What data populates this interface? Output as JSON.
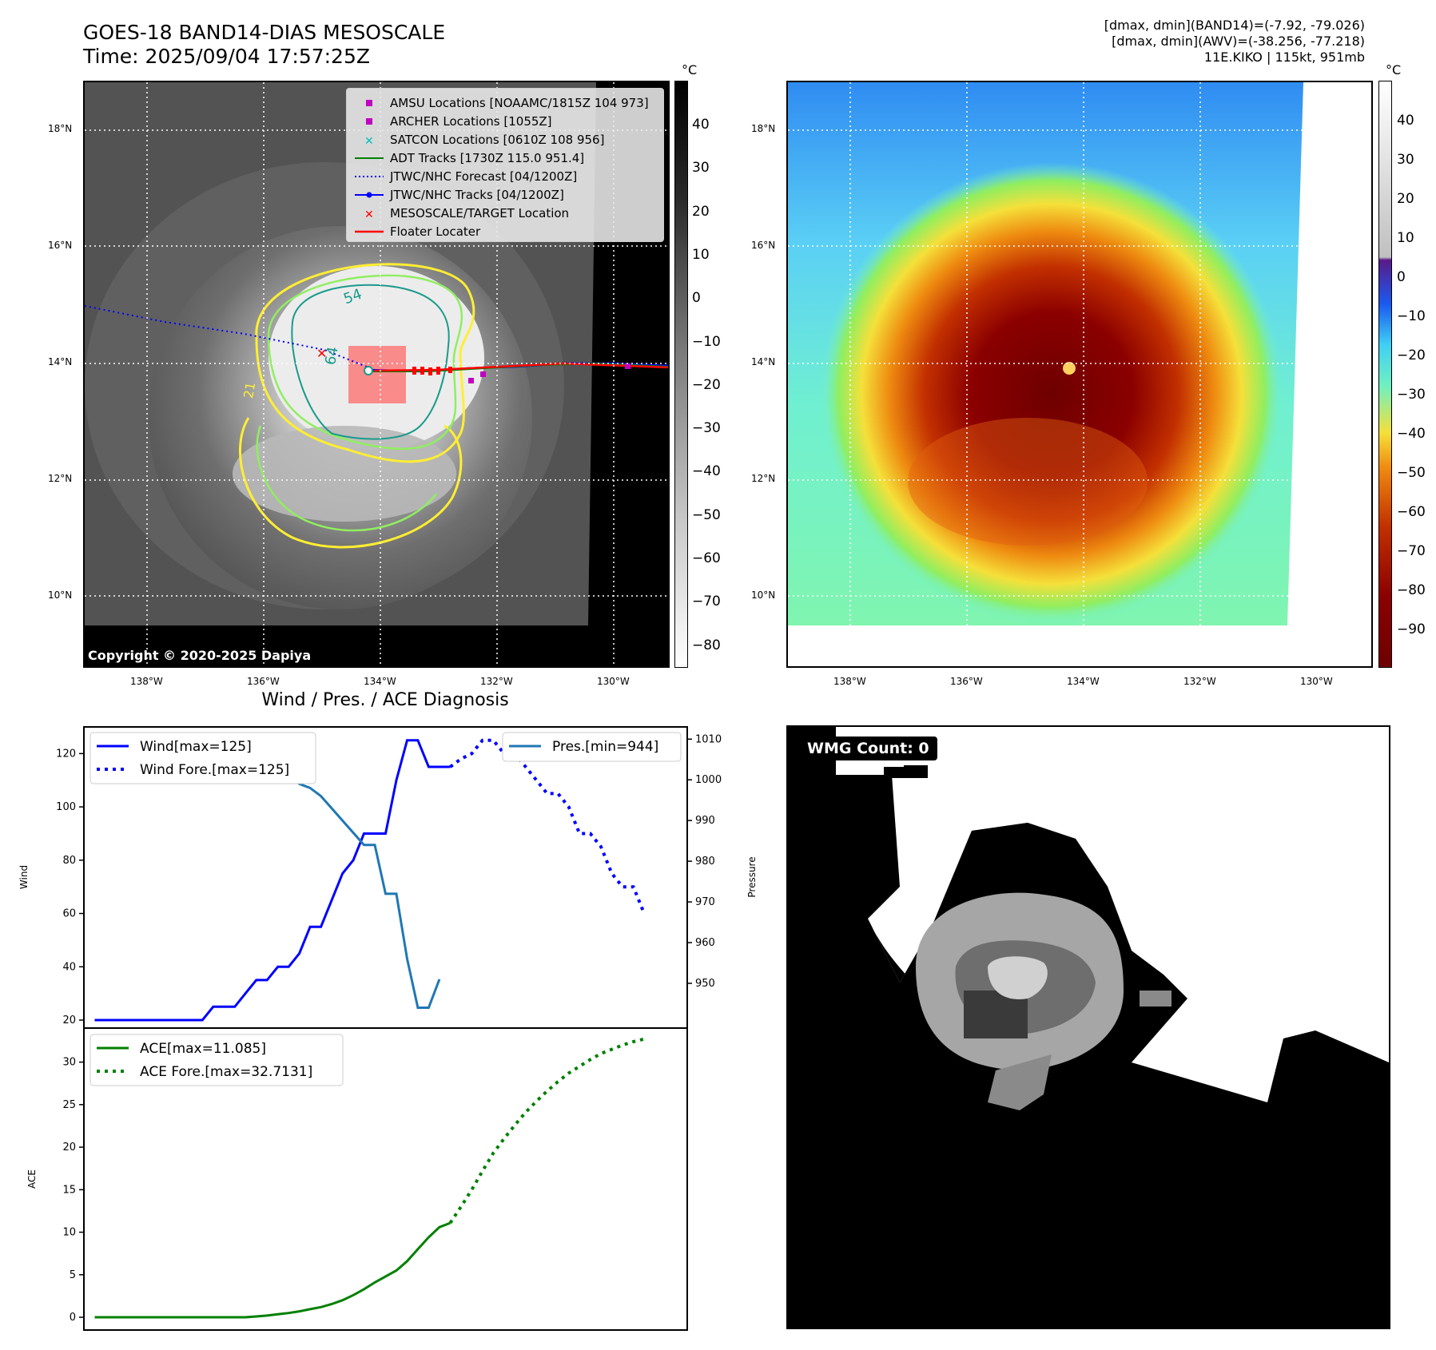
{
  "header": {
    "title_line1": "GOES-18 BAND14-DIAS MESOSCALE",
    "title_line2": "Time: 2025/09/04 17:57:25Z",
    "info_line1": "[dmax, dmin](BAND14)=(-7.92, -79.026)",
    "info_line2": "[dmax, dmin](AWV)=(-38.256, -77.218)",
    "info_line3": "11E.KIKO | 115kt, 951mb"
  },
  "maps": {
    "lat_labels": [
      "18°N",
      "16°N",
      "14°N",
      "12°N",
      "10°N"
    ],
    "lon_labels": [
      "138°W",
      "136°W",
      "134°W",
      "132°W",
      "130°W"
    ],
    "copyright": "Copyright © 2020-2025 Dapiya",
    "contour_labels": [
      "54",
      "64",
      "21"
    ],
    "colorbar_unit": "°C",
    "gray_colorbar_ticks": [
      "40",
      "30",
      "20",
      "10",
      "0",
      "−10",
      "−20",
      "−30",
      "−40",
      "−50",
      "−60",
      "−70",
      "−80"
    ],
    "color_colorbar_ticks": [
      "40",
      "30",
      "20",
      "10",
      "0",
      "−10",
      "−20",
      "−30",
      "−40",
      "−50",
      "−60",
      "−70",
      "−80",
      "−90"
    ]
  },
  "legend_map": {
    "items": [
      {
        "label": "AMSU Locations [NOAAMC/1815Z 104 973]",
        "color": "#c000c0",
        "symbol": "square"
      },
      {
        "label": "ARCHER Locations [1055Z]",
        "color": "#c000c0",
        "symbol": "square"
      },
      {
        "label": "SATCON Locations [0610Z 108 956]",
        "color": "#00bfbf",
        "symbol": "cross"
      },
      {
        "label": "ADT Tracks [1730Z 115.0 951.4]",
        "color": "#008000",
        "symbol": "line"
      },
      {
        "label": "JTWC/NHC Forecast [04/1200Z]",
        "color": "#0000ff",
        "symbol": "dotted"
      },
      {
        "label": "JTWC/NHC Tracks [04/1200Z]",
        "color": "#0000ff",
        "symbol": "line-dot"
      },
      {
        "label": "MESOSCALE/TARGET Location",
        "color": "#ff0000",
        "symbol": "x"
      },
      {
        "label": "Floater Locater",
        "color": "#ff0000",
        "symbol": "line"
      }
    ]
  },
  "wmg": {
    "badge": "WMG Count: 0"
  },
  "colors": {
    "wind": "#0000ff",
    "pressure": "#1f77b4",
    "ace": "#008000",
    "contour_yellow": "#ffee33",
    "contour_green": "#90ee60",
    "contour_teal": "#1a9a8a"
  },
  "chart_data": [
    {
      "type": "line",
      "title": "Wind / Pres. / ACE Diagnosis",
      "ylabel": "Wind",
      "ylabel_right": "Pressure",
      "ylim": [
        17,
        130
      ],
      "ylim_right": [
        939,
        1013
      ],
      "yticks": [
        20,
        40,
        60,
        80,
        100,
        120
      ],
      "yticks_right": [
        950,
        960,
        970,
        980,
        990,
        1000,
        1010
      ],
      "xlim": [
        -1,
        55
      ],
      "series": [
        {
          "name": "Wind",
          "legend": "Wind[max=125]",
          "axis": "left",
          "style": "solid",
          "x": [
            0,
            1,
            2,
            3,
            4,
            5,
            6,
            7,
            8,
            9,
            10,
            11,
            12,
            13,
            14,
            15,
            16,
            17,
            18,
            19,
            20,
            21,
            22,
            23,
            24,
            25,
            26,
            27,
            28,
            29,
            30,
            31,
            32,
            33
          ],
          "values": [
            20,
            20,
            20,
            20,
            20,
            20,
            20,
            20,
            20,
            20,
            20,
            25,
            25,
            25,
            30,
            35,
            35,
            40,
            40,
            45,
            55,
            55,
            65,
            75,
            80,
            90,
            90,
            90,
            110,
            125,
            125,
            115,
            115,
            115
          ]
        },
        {
          "name": "Wind Fore.",
          "legend": "Wind Fore.[max=125]",
          "axis": "left",
          "style": "dotted",
          "x": [
            33,
            34,
            35,
            36,
            37,
            38,
            39,
            40,
            41,
            42,
            43,
            44,
            45,
            46,
            47,
            48,
            49,
            50,
            51
          ],
          "values": [
            115,
            118,
            120,
            125,
            125,
            120,
            120,
            115,
            110,
            105,
            105,
            100,
            90,
            90,
            85,
            75,
            70,
            70,
            60
          ]
        },
        {
          "name": "Pres.",
          "legend": "Pres.[min=944]",
          "axis": "right",
          "style": "solid",
          "x": [
            0,
            1,
            2,
            3,
            4,
            5,
            6,
            7,
            8,
            9,
            10,
            11,
            12,
            13,
            14,
            15,
            16,
            17,
            18,
            19,
            20,
            21,
            22,
            23,
            24,
            25,
            26,
            27,
            28,
            29,
            30,
            31,
            32
          ],
          "values": [
            1010,
            1010,
            1010,
            1010,
            1010,
            1010,
            1010,
            1010,
            1010,
            1010,
            1010,
            1009,
            1009,
            1008,
            1007,
            1006,
            1004,
            1003,
            1001,
            999,
            998,
            996,
            993,
            990,
            987,
            984,
            984,
            972,
            972,
            956,
            944,
            944,
            951
          ]
        }
      ]
    },
    {
      "type": "line",
      "ylabel": "ACE",
      "ylim": [
        -1.5,
        34
      ],
      "yticks": [
        0,
        5,
        10,
        15,
        20,
        25,
        30
      ],
      "xlim": [
        -1,
        55
      ],
      "series": [
        {
          "name": "ACE",
          "legend": "ACE[max=11.085]",
          "style": "solid",
          "x": [
            0,
            2,
            4,
            6,
            8,
            10,
            12,
            14,
            15,
            16,
            17,
            18,
            19,
            20,
            21,
            22,
            23,
            24,
            25,
            26,
            27,
            28,
            29,
            30,
            31,
            32,
            33
          ],
          "values": [
            0,
            0,
            0,
            0,
            0,
            0,
            0,
            0,
            0.1,
            0.2,
            0.35,
            0.5,
            0.7,
            0.95,
            1.2,
            1.55,
            2.0,
            2.6,
            3.3,
            4.1,
            4.8,
            5.5,
            6.6,
            8.0,
            9.4,
            10.6,
            11.085
          ]
        },
        {
          "name": "ACE Fore.",
          "legend": "ACE Fore.[max=32.7131]",
          "style": "dotted",
          "x": [
            33,
            34,
            35,
            36,
            37,
            38,
            39,
            40,
            41,
            42,
            43,
            44,
            45,
            46,
            47,
            48,
            49,
            50,
            51
          ],
          "values": [
            11.085,
            13.0,
            15.0,
            17.2,
            19.3,
            21.0,
            22.6,
            24.1,
            25.4,
            26.6,
            27.7,
            28.7,
            29.5,
            30.3,
            31.0,
            31.5,
            32.0,
            32.4,
            32.7131
          ]
        }
      ]
    }
  ]
}
